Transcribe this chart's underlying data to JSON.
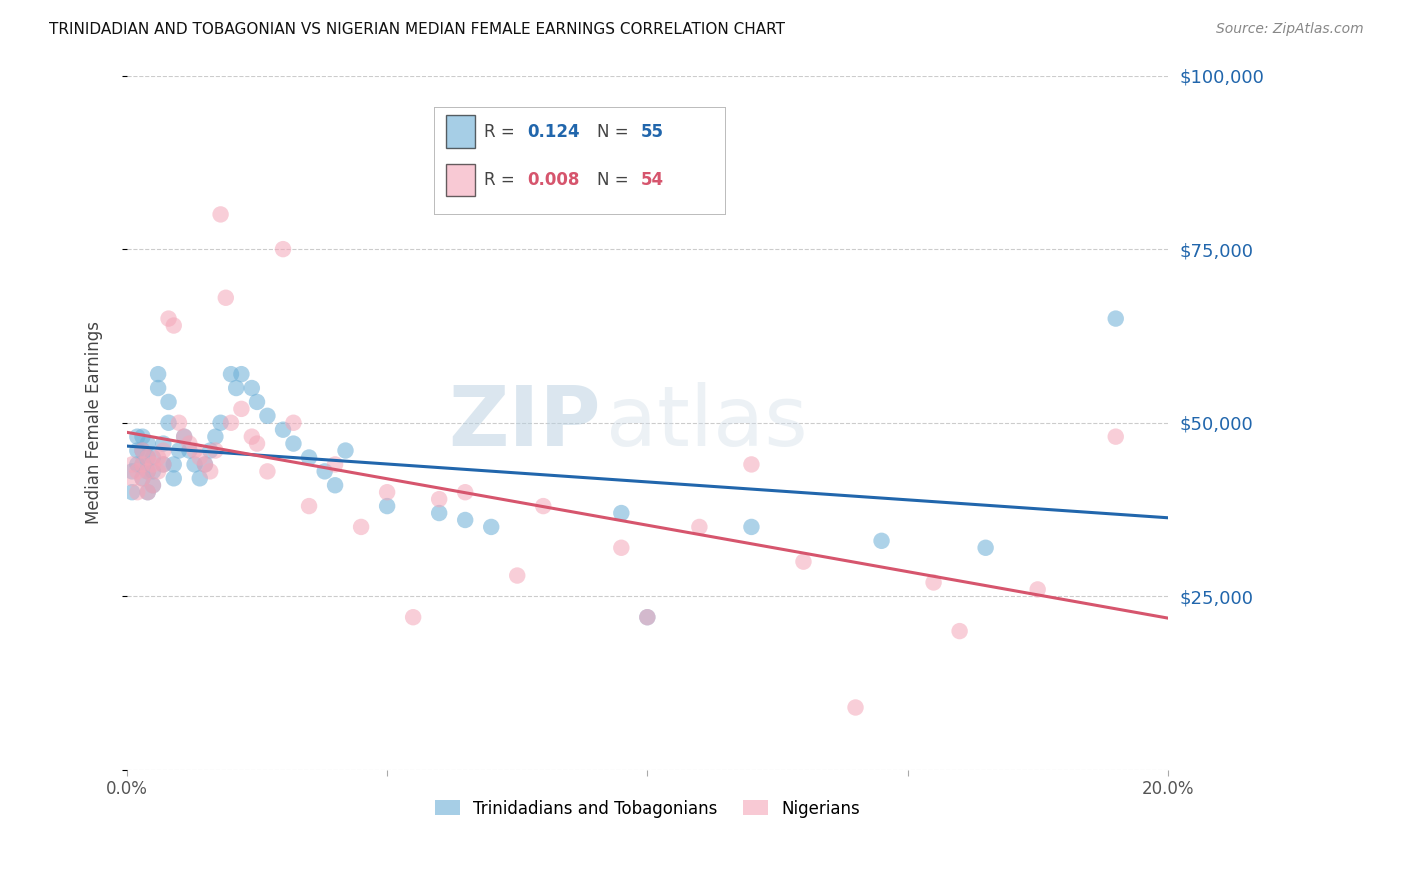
{
  "title": "TRINIDADIAN AND TOBAGONIAN VS NIGERIAN MEDIAN FEMALE EARNINGS CORRELATION CHART",
  "source": "Source: ZipAtlas.com",
  "ylabel": "Median Female Earnings",
  "xlabel_ticks": [
    "0.0%",
    "",
    "",
    "",
    "20.0%"
  ],
  "xlabel_vals": [
    0.0,
    0.05,
    0.1,
    0.15,
    0.2
  ],
  "ytick_vals": [
    0,
    25000,
    50000,
    75000,
    100000
  ],
  "ytick_labels": [
    "",
    "$25,000",
    "$50,000",
    "$75,000",
    "$100,000"
  ],
  "blue_color": "#6baed6",
  "pink_color": "#f4a6b8",
  "blue_line_color": "#2166ac",
  "pink_line_color": "#d6556d",
  "legend_blue_R": "0.124",
  "legend_blue_N": "55",
  "legend_pink_R": "0.008",
  "legend_pink_N": "54",
  "legend_label_blue": "Trinidadians and Tobagonians",
  "legend_label_pink": "Nigerians",
  "watermark_zip": "ZIP",
  "watermark_atlas": "atlas",
  "blue_scatter_x": [
    0.001,
    0.001,
    0.002,
    0.002,
    0.002,
    0.003,
    0.003,
    0.003,
    0.003,
    0.004,
    0.004,
    0.004,
    0.004,
    0.005,
    0.005,
    0.005,
    0.006,
    0.006,
    0.007,
    0.007,
    0.008,
    0.008,
    0.009,
    0.009,
    0.01,
    0.011,
    0.012,
    0.013,
    0.014,
    0.015,
    0.016,
    0.017,
    0.018,
    0.02,
    0.021,
    0.022,
    0.024,
    0.025,
    0.027,
    0.03,
    0.032,
    0.035,
    0.038,
    0.04,
    0.042,
    0.05,
    0.06,
    0.065,
    0.07,
    0.095,
    0.1,
    0.12,
    0.145,
    0.165,
    0.19
  ],
  "blue_scatter_y": [
    40000,
    43000,
    44000,
    46000,
    48000,
    42000,
    44000,
    46000,
    48000,
    40000,
    43000,
    45000,
    47000,
    41000,
    43000,
    45000,
    55000,
    57000,
    44000,
    47000,
    50000,
    53000,
    42000,
    44000,
    46000,
    48000,
    46000,
    44000,
    42000,
    44000,
    46000,
    48000,
    50000,
    57000,
    55000,
    57000,
    55000,
    53000,
    51000,
    49000,
    47000,
    45000,
    43000,
    41000,
    46000,
    38000,
    37000,
    36000,
    35000,
    37000,
    22000,
    35000,
    33000,
    32000,
    65000
  ],
  "pink_scatter_x": [
    0.001,
    0.001,
    0.002,
    0.002,
    0.003,
    0.003,
    0.003,
    0.004,
    0.004,
    0.004,
    0.005,
    0.005,
    0.006,
    0.006,
    0.007,
    0.007,
    0.008,
    0.009,
    0.01,
    0.011,
    0.012,
    0.013,
    0.014,
    0.015,
    0.016,
    0.017,
    0.018,
    0.019,
    0.02,
    0.022,
    0.024,
    0.025,
    0.027,
    0.03,
    0.032,
    0.035,
    0.04,
    0.045,
    0.05,
    0.055,
    0.06,
    0.065,
    0.075,
    0.08,
    0.095,
    0.1,
    0.11,
    0.12,
    0.13,
    0.14,
    0.155,
    0.16,
    0.175,
    0.19
  ],
  "pink_scatter_y": [
    42000,
    44000,
    40000,
    43000,
    42000,
    44000,
    46000,
    40000,
    43000,
    45000,
    41000,
    44000,
    43000,
    45000,
    44000,
    46000,
    65000,
    64000,
    50000,
    48000,
    47000,
    46000,
    45000,
    44000,
    43000,
    46000,
    80000,
    68000,
    50000,
    52000,
    48000,
    47000,
    43000,
    75000,
    50000,
    38000,
    44000,
    35000,
    40000,
    22000,
    39000,
    40000,
    28000,
    38000,
    32000,
    22000,
    35000,
    44000,
    30000,
    9000,
    27000,
    20000,
    26000,
    48000
  ],
  "xlim": [
    0.0,
    0.2
  ],
  "ylim": [
    0,
    100000
  ],
  "background_color": "#ffffff",
  "grid_color": "#cccccc"
}
